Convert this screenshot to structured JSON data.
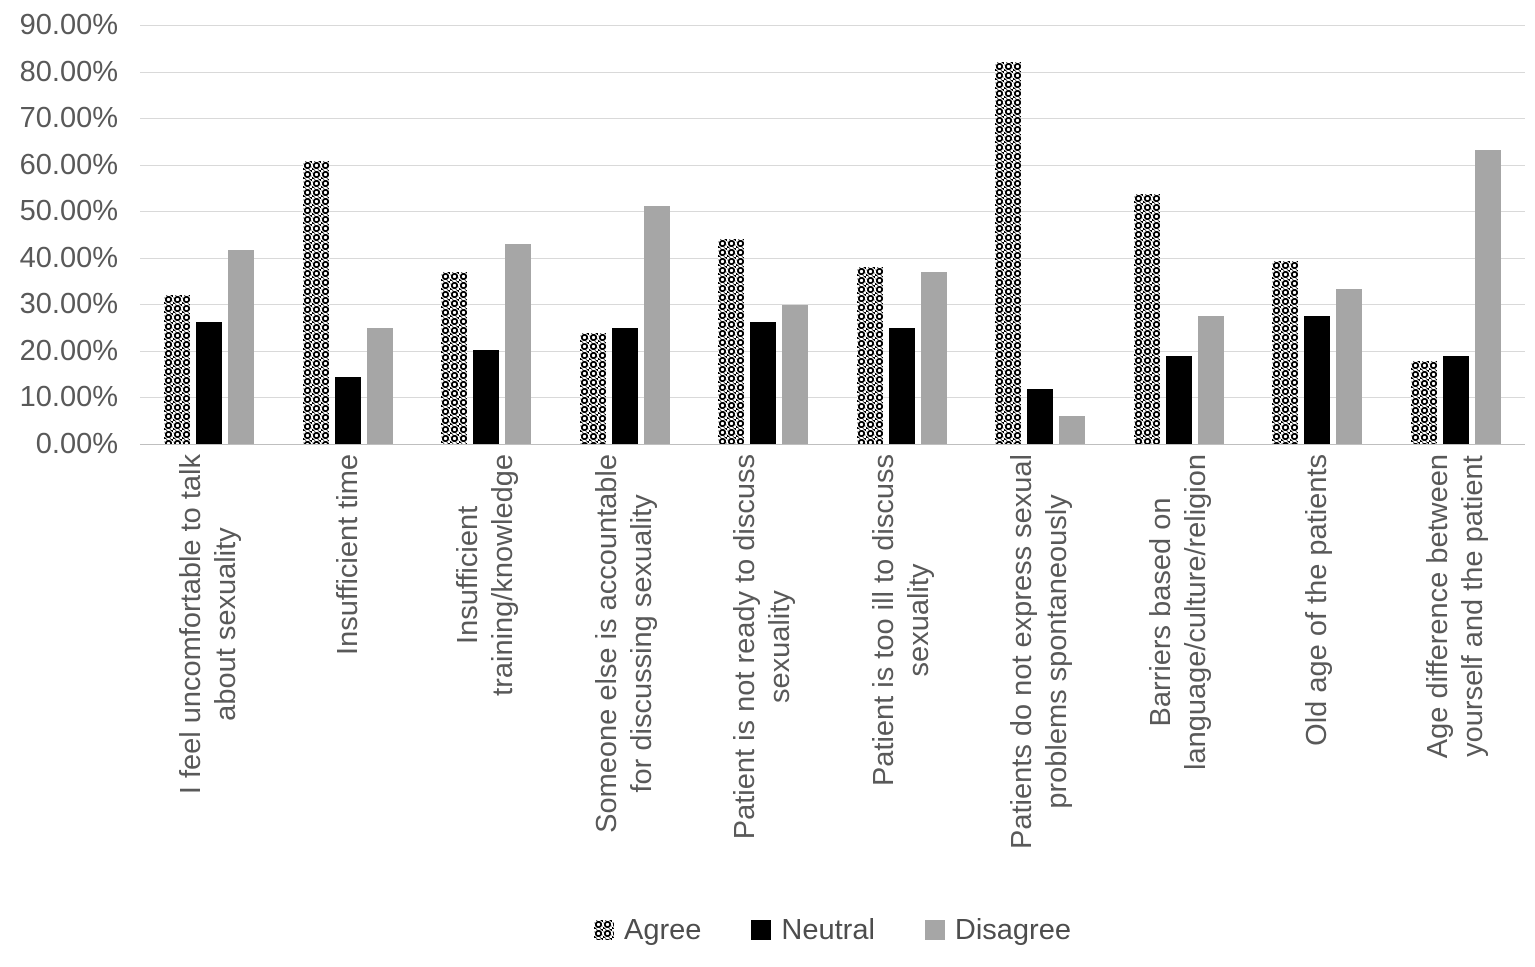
{
  "chart_data": {
    "type": "bar",
    "title": "",
    "xlabel": "",
    "ylabel": "",
    "grid": true,
    "legend_position": "bottom",
    "ylim": [
      0,
      90
    ],
    "ytick_step": 10,
    "ytick_labels": [
      "90.00%",
      "80.00%",
      "70.00%",
      "60.00%",
      "50.00%",
      "40.00%",
      "30.00%",
      "20.00%",
      "10.00%",
      "0.00%"
    ],
    "categories": [
      "I feel uncomfortable to talk\nabout sexuality",
      "Insufficient time",
      "Insufficient\ntraining/knowledge",
      "Someone else is accountable\nfor discussing sexuality",
      "Patient is not ready to discuss\nsexuality",
      "Patient is too ill to discuss\nsexuality",
      "Patients do not express sexual\nproblems spontaneously",
      "Barriers based on\nlanguage/culture/religion",
      "Old age of the patients",
      "Age difference between\nyourself and the patient"
    ],
    "series": [
      {
        "key": "agree",
        "name": "Agree",
        "fill_style": "black-white dotted lattice pattern",
        "values": [
          32.1,
          60.7,
          36.9,
          23.8,
          44.0,
          38.1,
          82.1,
          53.6,
          39.3,
          17.9
        ]
      },
      {
        "key": "neutral",
        "name": "Neutral",
        "color": "#000000",
        "values": [
          26.2,
          14.3,
          20.2,
          25.0,
          26.2,
          25.0,
          11.9,
          19.0,
          27.4,
          19.0
        ]
      },
      {
        "key": "disagree",
        "name": "Disagree",
        "color": "#a6a6a6",
        "values": [
          41.7,
          25.0,
          42.9,
          51.2,
          29.8,
          36.9,
          6.0,
          27.4,
          33.3,
          63.1
        ]
      }
    ]
  },
  "colors": {
    "neutral_bar": "#000000",
    "disagree_bar": "#a6a6a6",
    "grid_line": "#d9d9d9",
    "axis_line": "#bfbfbf",
    "text": "#595959"
  }
}
